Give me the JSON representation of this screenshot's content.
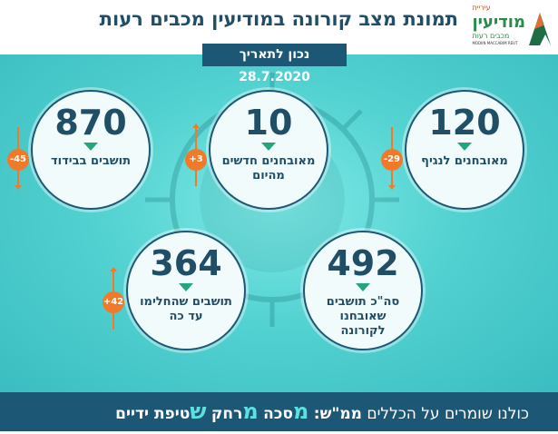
{
  "header": {
    "title": "תמונת מצב קורונה במודיעין מכבים רעות",
    "date": "נכון לתאריך 28.7.2020"
  },
  "logo": {
    "city": "עיריית",
    "name": "מודיעין",
    "sub": "מכבים רעות",
    "en": "MODIIN MACCABIM REUT"
  },
  "stats": [
    {
      "value": "120",
      "label": "מאובחנים לנגיף",
      "change": "-29",
      "direction": "down"
    },
    {
      "value": "10",
      "label": "מאובחנים חדשים מהיום",
      "change": "+3",
      "direction": "up"
    },
    {
      "value": "870",
      "label": "תושבים בבידוד",
      "change": "-45",
      "direction": "down"
    },
    {
      "value": "492",
      "label": "סה\"כ תושבים שאובחנו לקורונה"
    },
    {
      "value": "364",
      "label": "תושבים שהחלימו עד כה",
      "change": "+42",
      "direction": "up"
    }
  ],
  "footer": {
    "text": "כולנו שומרים על הכללים",
    "bold": "ממ\"ש:",
    "l1": "מ",
    "w1": "סכה",
    "l2": "מ",
    "w2": "רחק",
    "l3": "ש",
    "w3": "טיפת ידיים"
  },
  "colors": {
    "navy": "#1c5876",
    "teal": "#52d2d1",
    "orange": "#f07a2a",
    "green": "#27a57a"
  }
}
